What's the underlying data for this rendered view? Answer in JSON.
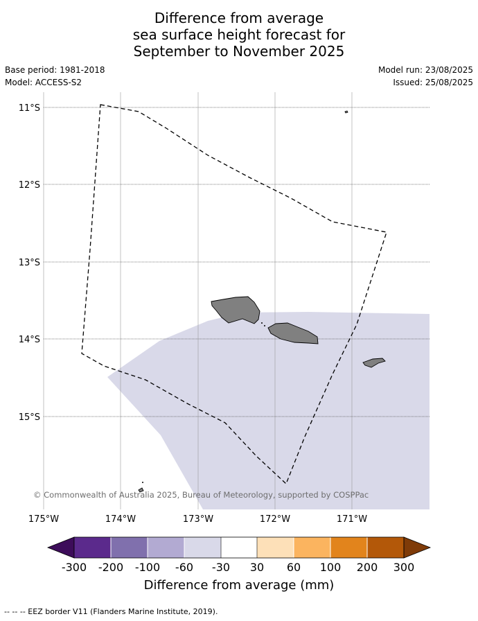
{
  "title": {
    "line1": "Difference from average",
    "line2": "sea surface height forecast for",
    "line3": "September to November 2025"
  },
  "meta": {
    "base_period": "Base period: 1981-2018",
    "model": "Model: ACCESS-S2",
    "model_run": "Model run: 23/08/2025",
    "issued": "Issued: 25/08/2025"
  },
  "map": {
    "lat_labels": [
      "11°S",
      "12°S",
      "13°S",
      "14°S",
      "15°S"
    ],
    "lon_labels": [
      "175°W",
      "174°W",
      "173°W",
      "172°W",
      "171°W"
    ],
    "copyright": "© Commonwealth of Australia 2025, Bureau of Meteorology, supported by COSPPac",
    "forecast_fill_color": "#d9d9e9",
    "land_color": "#808080"
  },
  "colorbar": {
    "tick_labels": [
      "-300",
      "-200",
      "-100",
      "-60",
      "-30",
      "30",
      "60",
      "100",
      "200",
      "300"
    ],
    "colors": [
      "#3d0d5a",
      "#5b2a8c",
      "#8070ad",
      "#b2aad2",
      "#d9d9e9",
      "#ffffff",
      "#fde0b8",
      "#fbb45f",
      "#e2841c",
      "#b35809",
      "#7f3b08"
    ],
    "label": "Difference from average (mm)"
  },
  "footer": {
    "eez_legend": "-- -- -- EEZ border V11 (Flanders Marine Institute, 2019)."
  }
}
